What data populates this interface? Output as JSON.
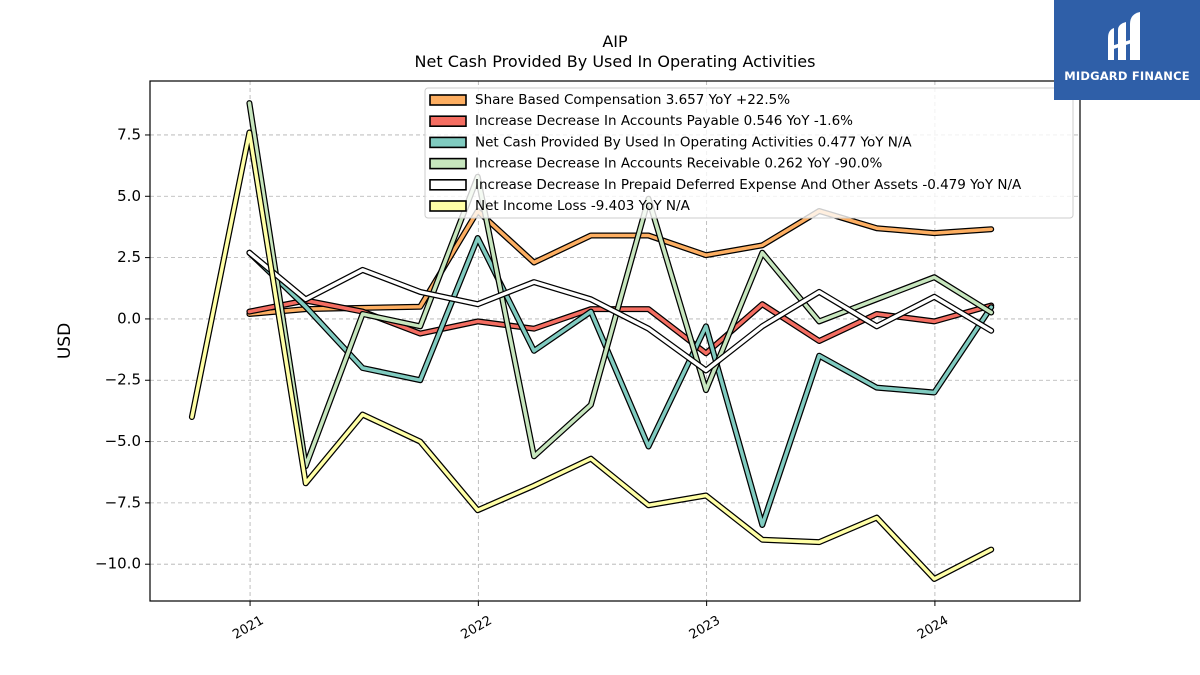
{
  "brand": {
    "name": "MIDGARD FINANCE",
    "bg_color": "#2f5fa8",
    "icon": "midgard-logo-icon"
  },
  "chart_data": {
    "type": "line",
    "title": "AIP",
    "subtitle": "Net Cash Provided By Used In Operating Activities",
    "xlabel": "",
    "ylabel": "USD",
    "ylim": [
      -11.5,
      9.7
    ],
    "xlim": [
      "2020-07-25",
      "2024-08-20"
    ],
    "yticks": [
      -10.0,
      -7.5,
      -5.0,
      -2.5,
      0.0,
      2.5,
      5.0,
      7.5
    ],
    "ytick_labels": [
      "−10.0",
      "−7.5",
      "−5.0",
      "−2.5",
      "0.0",
      "2.5",
      "5.0",
      "7.5"
    ],
    "xticks": [
      "2021-01-01",
      "2022-01-01",
      "2023-01-01",
      "2024-01-01"
    ],
    "xtick_labels": [
      "2021",
      "2022",
      "2023",
      "2024"
    ],
    "grid": true,
    "legend_position": "top-right",
    "series": [
      {
        "name": "Share Based Compensation",
        "legend_label": "Share Based Compensation  3.657 YoY +22.5%",
        "color": "#fdae61",
        "x": [
          "2020-12-31",
          "2021-03-31",
          "2021-06-30",
          "2021-09-30",
          "2021-12-31",
          "2022-03-31",
          "2022-06-30",
          "2022-09-30",
          "2022-12-31",
          "2023-03-31",
          "2023-06-30",
          "2023-09-30",
          "2023-12-31",
          "2024-03-31"
        ],
        "values": [
          0.2,
          0.4,
          0.45,
          0.5,
          4.4,
          2.3,
          3.4,
          3.4,
          2.6,
          3.0,
          4.4,
          3.7,
          3.5,
          3.657
        ]
      },
      {
        "name": "Increase Decrease In Accounts Payable",
        "legend_label": "Increase Decrease In Accounts Payable  0.546 YoY -1.6%",
        "color": "#f46d61",
        "x": [
          "2020-12-31",
          "2021-03-31",
          "2021-06-30",
          "2021-09-30",
          "2021-12-31",
          "2022-03-31",
          "2022-06-30",
          "2022-09-30",
          "2022-12-31",
          "2023-03-31",
          "2023-06-30",
          "2023-09-30",
          "2023-12-31",
          "2024-03-31"
        ],
        "values": [
          0.3,
          0.75,
          0.3,
          -0.6,
          -0.1,
          -0.4,
          0.4,
          0.4,
          -1.4,
          0.6,
          -0.9,
          0.2,
          -0.1,
          0.546
        ]
      },
      {
        "name": "Net Cash Provided By Used In Operating Activities",
        "legend_label": "Net Cash Provided By Used In Operating Activities  0.477 YoY N/A",
        "color": "#80cbc0",
        "x": [
          "2020-12-31",
          "2021-03-31",
          "2021-06-30",
          "2021-09-30",
          "2021-12-31",
          "2022-03-31",
          "2022-06-30",
          "2022-09-30",
          "2022-12-31",
          "2023-03-31",
          "2023-06-30",
          "2023-09-30",
          "2023-12-31",
          "2024-03-31"
        ],
        "values": [
          2.7,
          0.5,
          -2.0,
          -2.5,
          3.3,
          -1.3,
          0.3,
          -5.2,
          -0.3,
          -8.4,
          -1.5,
          -2.8,
          -3.0,
          0.477
        ]
      },
      {
        "name": "Increase Decrease In Accounts Receivable",
        "legend_label": "Increase Decrease In Accounts Receivable  0.262 YoY -90.0%",
        "color": "#c7e6be",
        "x": [
          "2020-12-31",
          "2021-03-31",
          "2021-06-30",
          "2021-09-30",
          "2021-12-31",
          "2022-03-31",
          "2022-06-30",
          "2022-09-30",
          "2022-12-31",
          "2023-03-31",
          "2023-06-30",
          "2023-09-30",
          "2023-12-31",
          "2024-03-31"
        ],
        "values": [
          8.8,
          -6.0,
          0.2,
          -0.3,
          5.8,
          -5.6,
          -3.5,
          4.9,
          -2.9,
          2.7,
          -0.1,
          0.8,
          1.7,
          0.262
        ]
      },
      {
        "name": "Increase Decrease In Prepaid Deferred Expense And Other Assets",
        "legend_label": "Increase Decrease In Prepaid Deferred Expense And Other Assets  -0.479 YoY N/A",
        "color": "#ffffff",
        "x": [
          "2020-12-31",
          "2021-03-31",
          "2021-06-30",
          "2021-09-30",
          "2021-12-31",
          "2022-03-31",
          "2022-06-30",
          "2022-09-30",
          "2022-12-31",
          "2023-03-31",
          "2023-06-30",
          "2023-09-30",
          "2023-12-31",
          "2024-03-31"
        ],
        "values": [
          2.7,
          0.8,
          2.0,
          1.1,
          0.6,
          1.5,
          0.8,
          -0.4,
          -2.1,
          -0.3,
          1.1,
          -0.3,
          0.9,
          -0.479
        ]
      },
      {
        "name": "Net Income Loss",
        "legend_label": "Net Income Loss  -9.403 YoY N/A",
        "color": "#ffffa6",
        "x": [
          "2020-09-30",
          "2020-12-31",
          "2021-03-31",
          "2021-06-30",
          "2021-09-30",
          "2021-12-31",
          "2022-03-31",
          "2022-06-30",
          "2022-09-30",
          "2022-12-31",
          "2023-03-31",
          "2023-06-30",
          "2023-09-30",
          "2023-12-31",
          "2024-03-31"
        ],
        "values": [
          -4.0,
          7.6,
          -6.7,
          -3.9,
          -5.0,
          -7.8,
          -6.8,
          -5.7,
          -7.6,
          -7.2,
          -9.0,
          -9.1,
          -8.1,
          -10.6,
          -9.403
        ]
      }
    ]
  }
}
